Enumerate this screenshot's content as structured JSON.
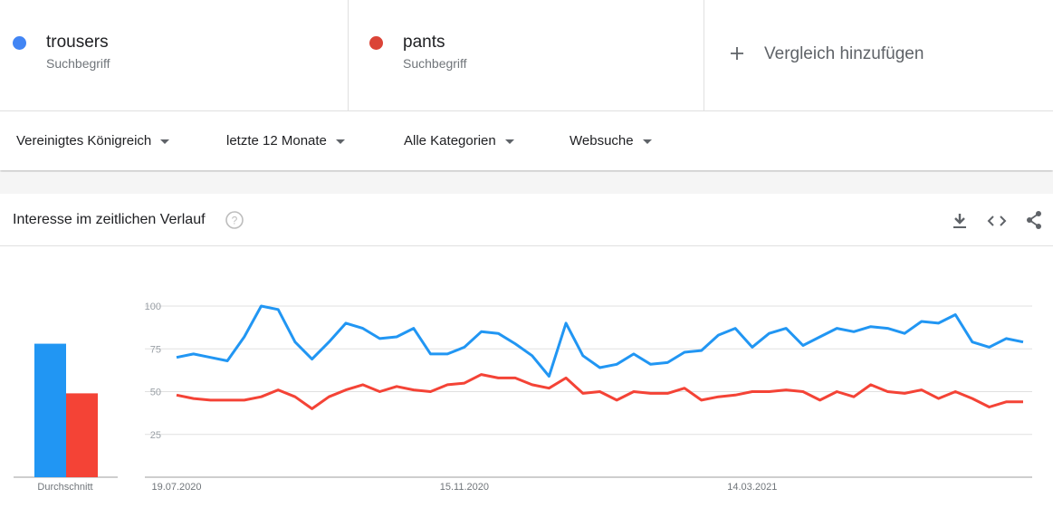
{
  "header": {
    "term_label": "Suchbegriff",
    "add_compare": "Vergleich hinzufügen"
  },
  "filters": [
    "Vereinigtes Königreich",
    "letzte 12 Monate",
    "Alle Kategorien",
    "Websuche"
  ],
  "panel_title": "Interesse im zeitlichen Verlauf",
  "chart_data": {
    "type": "line",
    "categories": [
      "19.07.2020",
      null,
      null,
      null,
      null,
      null,
      null,
      null,
      null,
      null,
      null,
      null,
      null,
      null,
      null,
      null,
      null,
      "15.11.2020",
      null,
      null,
      null,
      null,
      null,
      null,
      null,
      null,
      null,
      null,
      null,
      null,
      null,
      null,
      null,
      null,
      "14.03.2021",
      null,
      null,
      null,
      null,
      null,
      null,
      null,
      null,
      null,
      null,
      null,
      null,
      null,
      null,
      null,
      null
    ],
    "series": [
      {
        "name": "trousers",
        "color": "#2196f3",
        "average": 78,
        "values": [
          70,
          72,
          70,
          68,
          82,
          100,
          98,
          79,
          69,
          79,
          90,
          87,
          81,
          82,
          87,
          72,
          72,
          76,
          85,
          84,
          78,
          71,
          59,
          90,
          71,
          64,
          66,
          72,
          66,
          67,
          73,
          74,
          83,
          87,
          76,
          84,
          87,
          77,
          82,
          87,
          85,
          88,
          87,
          84,
          91,
          90,
          95,
          79,
          76,
          81,
          79
        ]
      },
      {
        "name": "pants",
        "color": "#f44336",
        "average": 49,
        "values": [
          48,
          46,
          45,
          45,
          45,
          47,
          51,
          47,
          40,
          47,
          51,
          54,
          50,
          53,
          51,
          50,
          54,
          55,
          60,
          58,
          58,
          54,
          52,
          58,
          49,
          50,
          45,
          50,
          49,
          49,
          52,
          45,
          47,
          48,
          50,
          50,
          51,
          50,
          45,
          50,
          47,
          54,
          50,
          49,
          51,
          46,
          50,
          46,
          41,
          44,
          44
        ]
      }
    ],
    "average_label": "Durchschnitt",
    "ylim": [
      0,
      100
    ],
    "yticks": [
      25,
      50,
      75,
      100
    ],
    "grid": true
  }
}
